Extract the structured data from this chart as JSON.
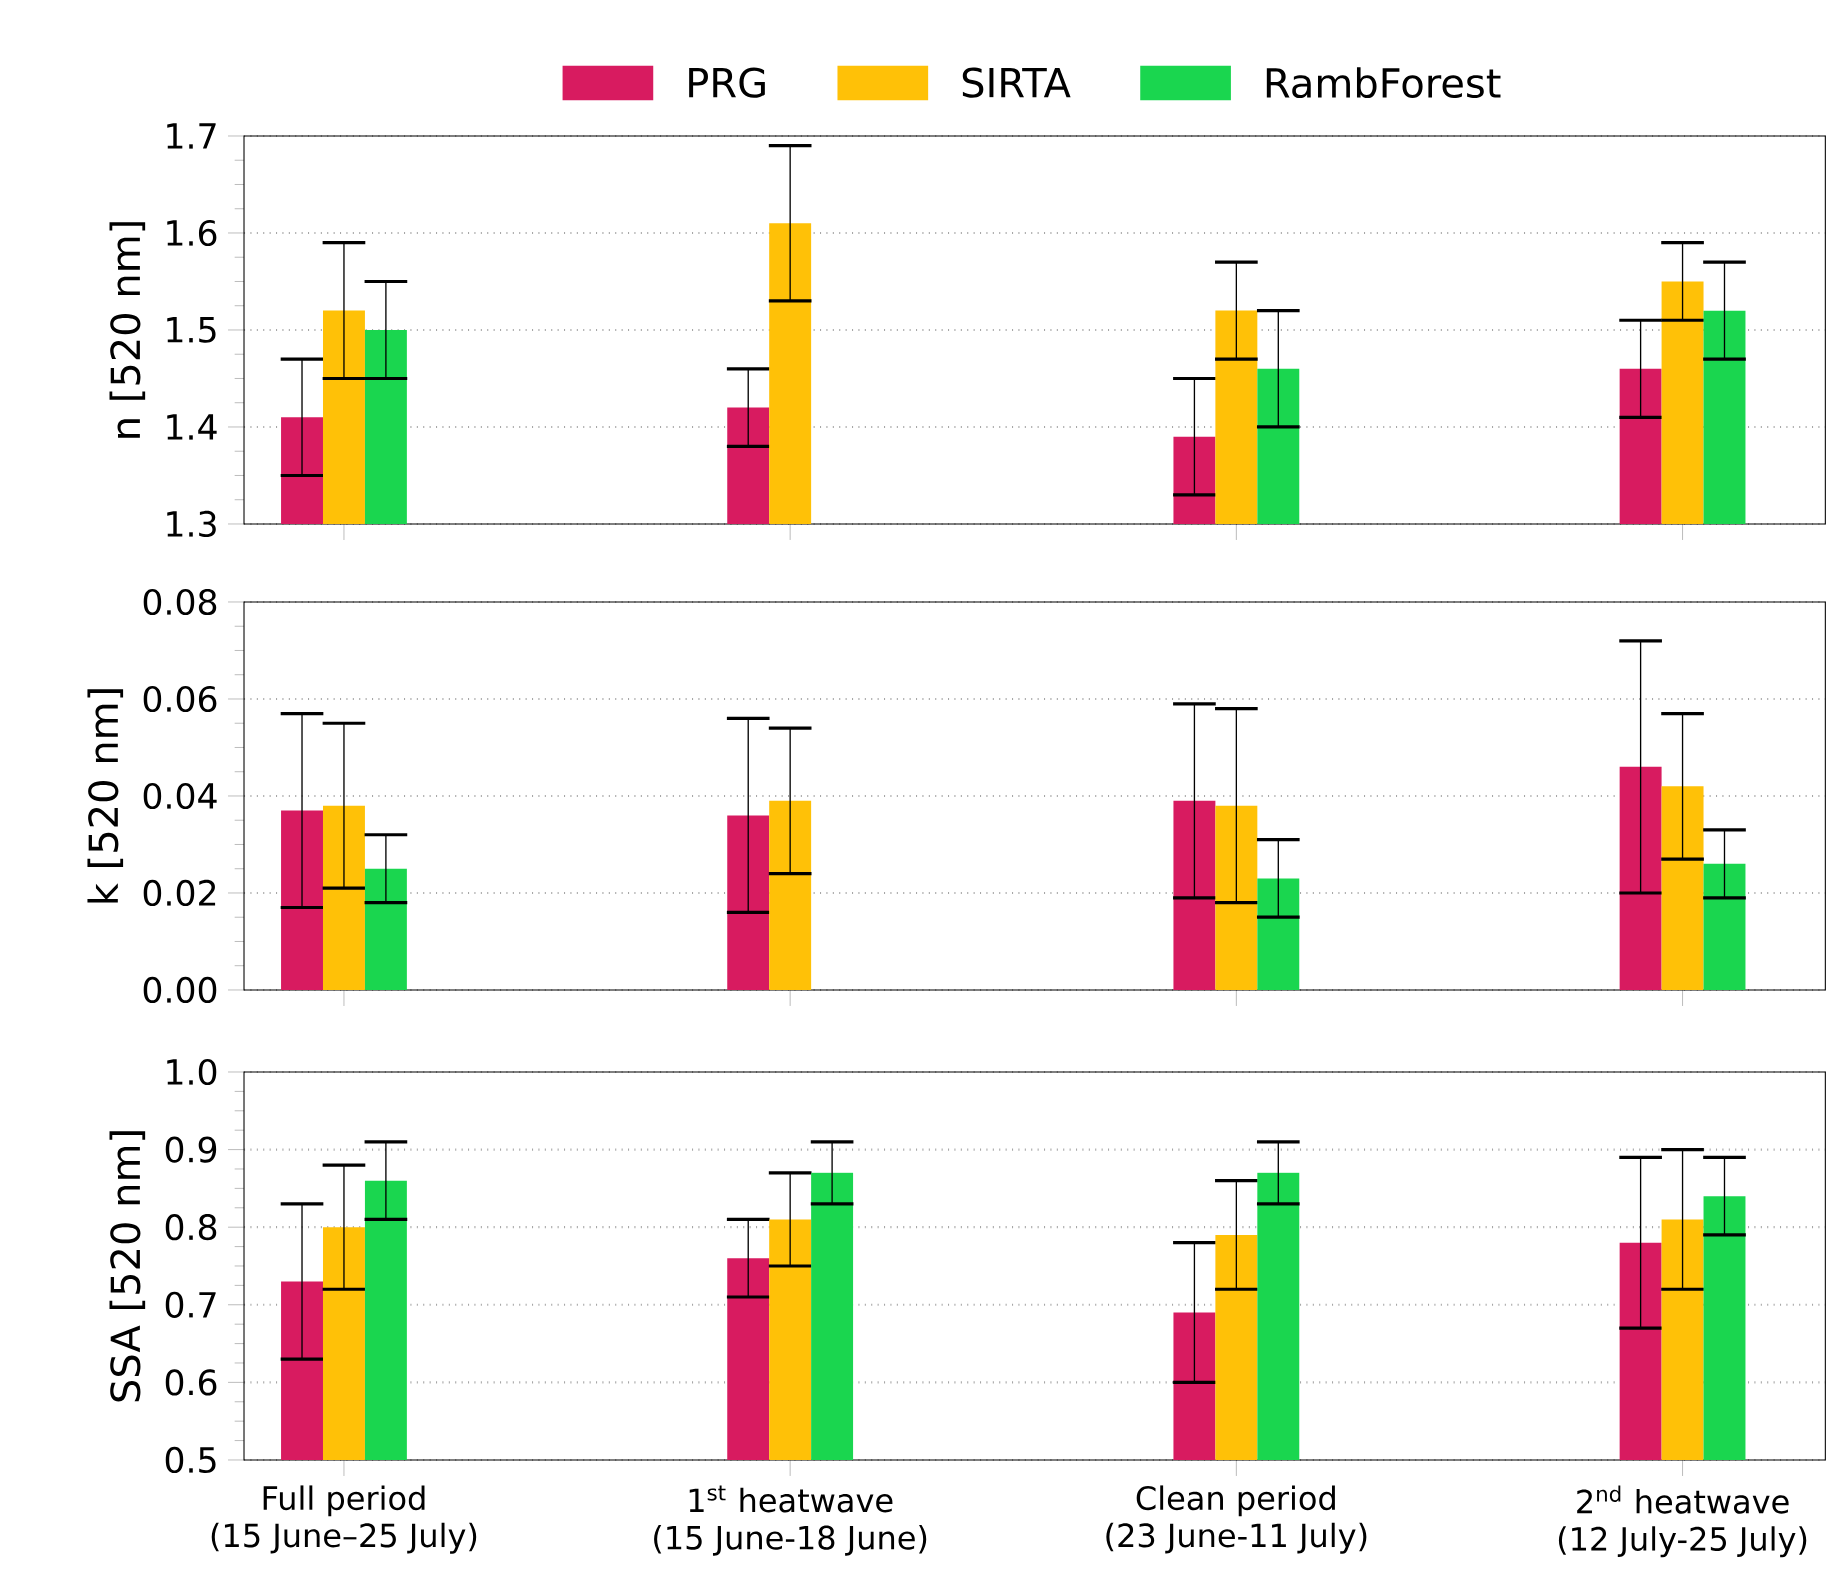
{
  "chart_data": [
    {
      "type": "bar",
      "ylabel": "n [520 nm]",
      "ylim": [
        1.3,
        1.7
      ],
      "yticks": [
        1.3,
        1.4,
        1.5,
        1.6,
        1.7
      ],
      "grid": "y",
      "legend": "top",
      "tick_labels": "y",
      "series": [
        {
          "name": "PRG",
          "color": "#d81b60",
          "values": [
            1.41,
            1.42,
            1.39,
            1.46
          ],
          "errors": [
            0.06,
            0.04,
            0.06,
            0.05
          ]
        },
        {
          "name": "SIRTA",
          "color": "#ffc107",
          "values": [
            1.52,
            1.61,
            1.52,
            1.55
          ],
          "errors": [
            0.07,
            0.08,
            0.05,
            0.04
          ]
        },
        {
          "name": "RambForest",
          "color": "#1ad64f",
          "values": [
            1.5,
            null,
            1.46,
            1.52
          ],
          "errors": [
            0.05,
            null,
            0.06,
            0.05
          ]
        }
      ]
    },
    {
      "type": "bar",
      "ylabel": "k [520 nm]",
      "ylim": [
        0,
        0.08
      ],
      "yticks": [
        {
          "value": 0,
          "label": "0.00"
        },
        {
          "value": 0.02,
          "label": "0.02"
        },
        {
          "value": 0.04,
          "label": "0.04"
        },
        {
          "value": 0.06,
          "label": "0.06"
        },
        {
          "value": 0.08,
          "label": "0.08"
        }
      ],
      "grid": "y",
      "tick_labels": "y",
      "series": [
        {
          "color": "#d81b60",
          "values": [
            0.037,
            0.036,
            0.039,
            0.046
          ],
          "errors": [
            0.02,
            0.02,
            0.02,
            0.026
          ]
        },
        {
          "color": "#ffc107",
          "values": [
            0.038,
            0.039,
            0.038,
            0.042
          ],
          "errors": [
            0.017,
            0.015,
            0.02,
            0.015
          ]
        },
        {
          "color": "#1ad64f",
          "values": [
            0.025,
            null,
            0.023,
            0.026
          ],
          "errors": [
            0.007,
            null,
            0.008,
            0.007
          ]
        }
      ]
    },
    {
      "type": "bar",
      "ylabel": "SSA [520 nm]",
      "categories": [
        "Full period\n(15 June–25 July)",
        "1$^{st}$ heatwave\n(15 June-18 June)",
        "Clean period\n(23 June-11 July)",
        "2$^{nd}$ heatwave\n(12 July-25 July)"
      ],
      "ylim": [
        0.5,
        1.0
      ],
      "yticks": [
        0.5,
        0.6,
        0.7,
        0.8,
        0.9,
        {
          "value": 1.0,
          "label": "1.0"
        }
      ],
      "grid": "y",
      "series": [
        {
          "color": "#d81b60",
          "values": [
            0.73,
            0.76,
            0.69,
            0.78
          ],
          "errors": [
            0.1,
            0.05,
            0.09,
            0.11
          ]
        },
        {
          "color": "#ffc107",
          "values": [
            0.8,
            0.81,
            0.79,
            0.81
          ],
          "errors": [
            0.08,
            0.06,
            0.07,
            0.09
          ]
        },
        {
          "color": "#1ad64f",
          "values": [
            0.86,
            0.87,
            0.87,
            0.84
          ],
          "errors": [
            0.05,
            0.04,
            0.04,
            0.05
          ]
        }
      ]
    }
  ]
}
